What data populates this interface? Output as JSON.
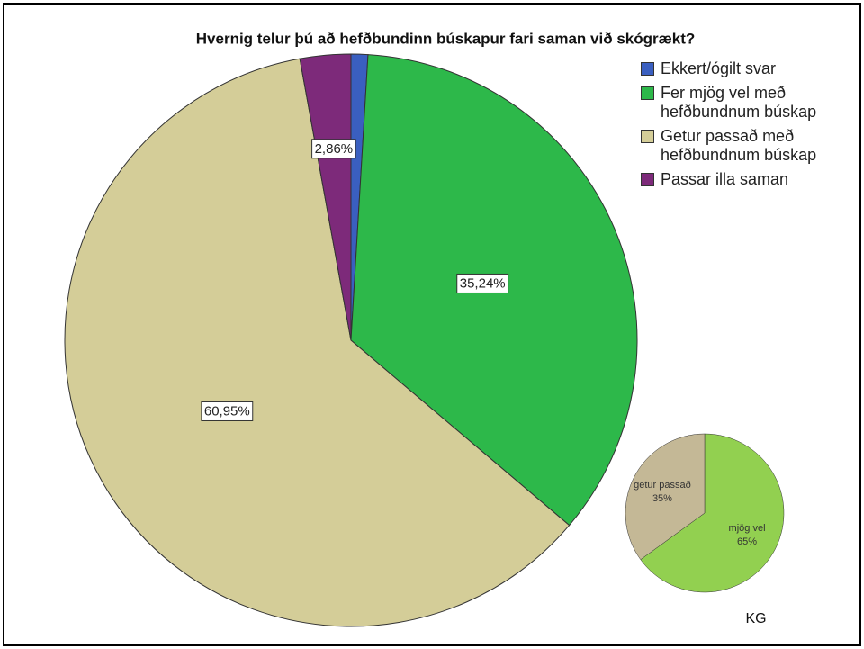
{
  "chart_data": [
    {
      "type": "pie",
      "title": "Hvernig telur þú að hefðbundinn búskapur fari saman við skógrækt?",
      "categories": [
        "Ekkert/ógilt svar",
        "Fer mjög vel með hefðbundnum búskap",
        "Getur passað með hefðbundnum búskap",
        "Passar illa saman"
      ],
      "values": [
        0.95,
        35.24,
        60.95,
        2.86
      ],
      "value_labels": [
        null,
        "35,24%",
        "60,95%",
        "2,86%"
      ],
      "colors": [
        "#3a5fc0",
        "#2db84a",
        "#d4cd98",
        "#7d2a7a"
      ],
      "legend": "top-right"
    },
    {
      "type": "pie",
      "categories": [
        "mjög vel",
        "getur passað"
      ],
      "values": [
        65,
        35
      ],
      "value_labels": [
        "65%",
        "35%"
      ],
      "colors": [
        "#92d050",
        "#c4b896"
      ],
      "annotation": "KG"
    }
  ]
}
